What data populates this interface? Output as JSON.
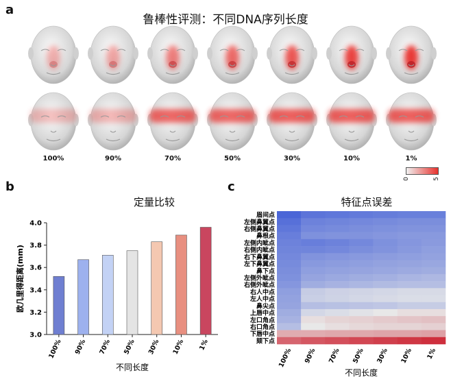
{
  "panel_a": {
    "letter": "a",
    "title": "鲁棒性评测：不同DNA序列长度",
    "percent_labels": [
      "100%",
      "90%",
      "70%",
      "50%",
      "30%",
      "10%",
      "1%"
    ],
    "nose_intensity": [
      0.35,
      0.4,
      0.6,
      0.7,
      0.8,
      0.9,
      0.95
    ],
    "eye_intensity": [
      0.35,
      0.4,
      0.9,
      0.9,
      0.95,
      0.95,
      0.95
    ],
    "colorbar": {
      "min_label": "0",
      "max_label": "5",
      "low_color": "#f0f0f0",
      "high_color": "#e8332e"
    }
  },
  "panel_b": {
    "letter": "b",
    "chart_data": {
      "type": "bar",
      "title": "定量比较",
      "xlabel": "不同长度",
      "ylabel": "欧几里得距离(mm)",
      "categories": [
        "100%",
        "90%",
        "70%",
        "50%",
        "30%",
        "10%",
        "1%"
      ],
      "values": [
        3.52,
        3.67,
        3.71,
        3.75,
        3.83,
        3.89,
        3.96
      ],
      "colors": [
        "#6f7fd1",
        "#9db1ee",
        "#c3d2f5",
        "#e4e4e4",
        "#f4c8b1",
        "#e88f80",
        "#c9465f"
      ],
      "ylim": [
        3.0,
        4.0
      ],
      "yticks": [
        "3.0",
        "3.2",
        "3.4",
        "3.6",
        "3.8",
        "4.0"
      ]
    }
  },
  "panel_c": {
    "letter": "c",
    "chart_data": {
      "type": "heatmap",
      "title": "特征点误差",
      "xlabel": "不同长度",
      "columns": [
        "100%",
        "90%",
        "70%",
        "50%",
        "30%",
        "10%",
        "1%"
      ],
      "rows": [
        "眉间点",
        "左侧鼻翼点",
        "右侧鼻翼点",
        "鼻根点",
        "左侧内眦点",
        "右侧内眦点",
        "右下鼻翼点",
        "左下鼻翼点",
        "鼻下点",
        "左侧外眦点",
        "右侧外眦点",
        "右人中点",
        "左人中点",
        "鼻尖点",
        "上唇中点",
        "左口角点",
        "右口角点",
        "下唇中点",
        "颏下点"
      ],
      "values": [
        [
          0.92,
          0.82,
          0.8,
          0.78,
          0.76,
          0.74,
          0.74
        ],
        [
          0.85,
          0.72,
          0.7,
          0.68,
          0.66,
          0.64,
          0.64
        ],
        [
          0.8,
          0.68,
          0.66,
          0.64,
          0.62,
          0.6,
          0.6
        ],
        [
          0.75,
          0.62,
          0.6,
          0.6,
          0.58,
          0.56,
          0.56
        ],
        [
          0.72,
          0.75,
          0.72,
          0.68,
          0.62,
          0.58,
          0.55
        ],
        [
          0.7,
          0.7,
          0.68,
          0.64,
          0.6,
          0.56,
          0.52
        ],
        [
          0.68,
          0.6,
          0.58,
          0.56,
          0.54,
          0.52,
          0.5
        ],
        [
          0.66,
          0.56,
          0.54,
          0.52,
          0.5,
          0.48,
          0.46
        ],
        [
          0.64,
          0.52,
          0.5,
          0.48,
          0.46,
          0.44,
          0.42
        ],
        [
          0.62,
          0.48,
          0.45,
          0.42,
          0.4,
          0.36,
          0.34
        ],
        [
          0.58,
          0.42,
          0.38,
          0.35,
          0.32,
          0.3,
          0.3
        ],
        [
          0.52,
          0.2,
          0.16,
          0.14,
          0.12,
          0.1,
          0.1
        ],
        [
          0.5,
          0.18,
          0.15,
          0.12,
          0.1,
          0.08,
          0.08
        ],
        [
          0.48,
          0.3,
          0.28,
          0.26,
          0.24,
          0.2,
          0.2
        ],
        [
          0.42,
          0.12,
          0.08,
          0.04,
          0.0,
          -0.05,
          -0.05
        ],
        [
          0.38,
          -0.05,
          -0.1,
          -0.12,
          -0.15,
          -0.18,
          -0.2
        ],
        [
          0.3,
          0.0,
          -0.05,
          -0.08,
          -0.1,
          -0.1,
          -0.12
        ],
        [
          -0.3,
          -0.3,
          -0.32,
          -0.32,
          -0.34,
          -0.34,
          -0.36
        ],
        [
          -0.65,
          -0.72,
          -0.76,
          -0.8,
          -0.84,
          -0.88,
          -0.92
        ]
      ],
      "color_low": "#cc1f2e",
      "color_mid": "#e8e8e8",
      "color_high": "#3d5bd6"
    }
  }
}
